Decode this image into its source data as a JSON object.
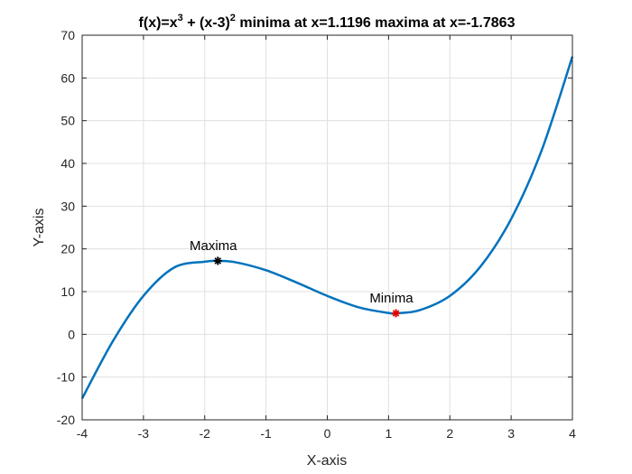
{
  "chart_data": {
    "type": "line",
    "title": {
      "p1": "f(x)=x",
      "e1": "3",
      "p2": " + (x-3)",
      "e2": "2",
      "p3": " minima at x=1.1196 maxima at x=-1.7863"
    },
    "xlabel": "X-axis",
    "ylabel": "Y-axis",
    "xlim": [
      -4,
      4
    ],
    "ylim": [
      -20,
      70
    ],
    "xticks": [
      -4,
      -3,
      -2,
      -1,
      0,
      1,
      2,
      3,
      4
    ],
    "yticks": [
      -20,
      -10,
      0,
      10,
      20,
      30,
      40,
      50,
      60,
      70
    ],
    "grid": true,
    "series": [
      {
        "name": "f(x)",
        "color": "#0072BD",
        "x": [
          -4,
          -3.5,
          -3,
          -2.5,
          -2,
          -1.7863,
          -1.5,
          -1,
          -0.5,
          0,
          0.5,
          1,
          1.1196,
          1.5,
          2,
          2.5,
          3,
          3.5,
          4
        ],
        "y": [
          -15,
          -1.625,
          9,
          15.625,
          17,
          17.196,
          16.875,
          15,
          12.125,
          9,
          6.375,
          5,
          4.936,
          5.625,
          9,
          15.875,
          27,
          43.125,
          65
        ]
      }
    ],
    "markers": [
      {
        "label": "Maxima",
        "x": -1.7863,
        "y": 17.196,
        "color": "#000000"
      },
      {
        "label": "Minima",
        "x": 1.1196,
        "y": 4.936,
        "color": "#e00000"
      }
    ],
    "colors": {
      "axis": "#262626",
      "grid": "#e0e0e0",
      "line": "#0072BD"
    }
  }
}
